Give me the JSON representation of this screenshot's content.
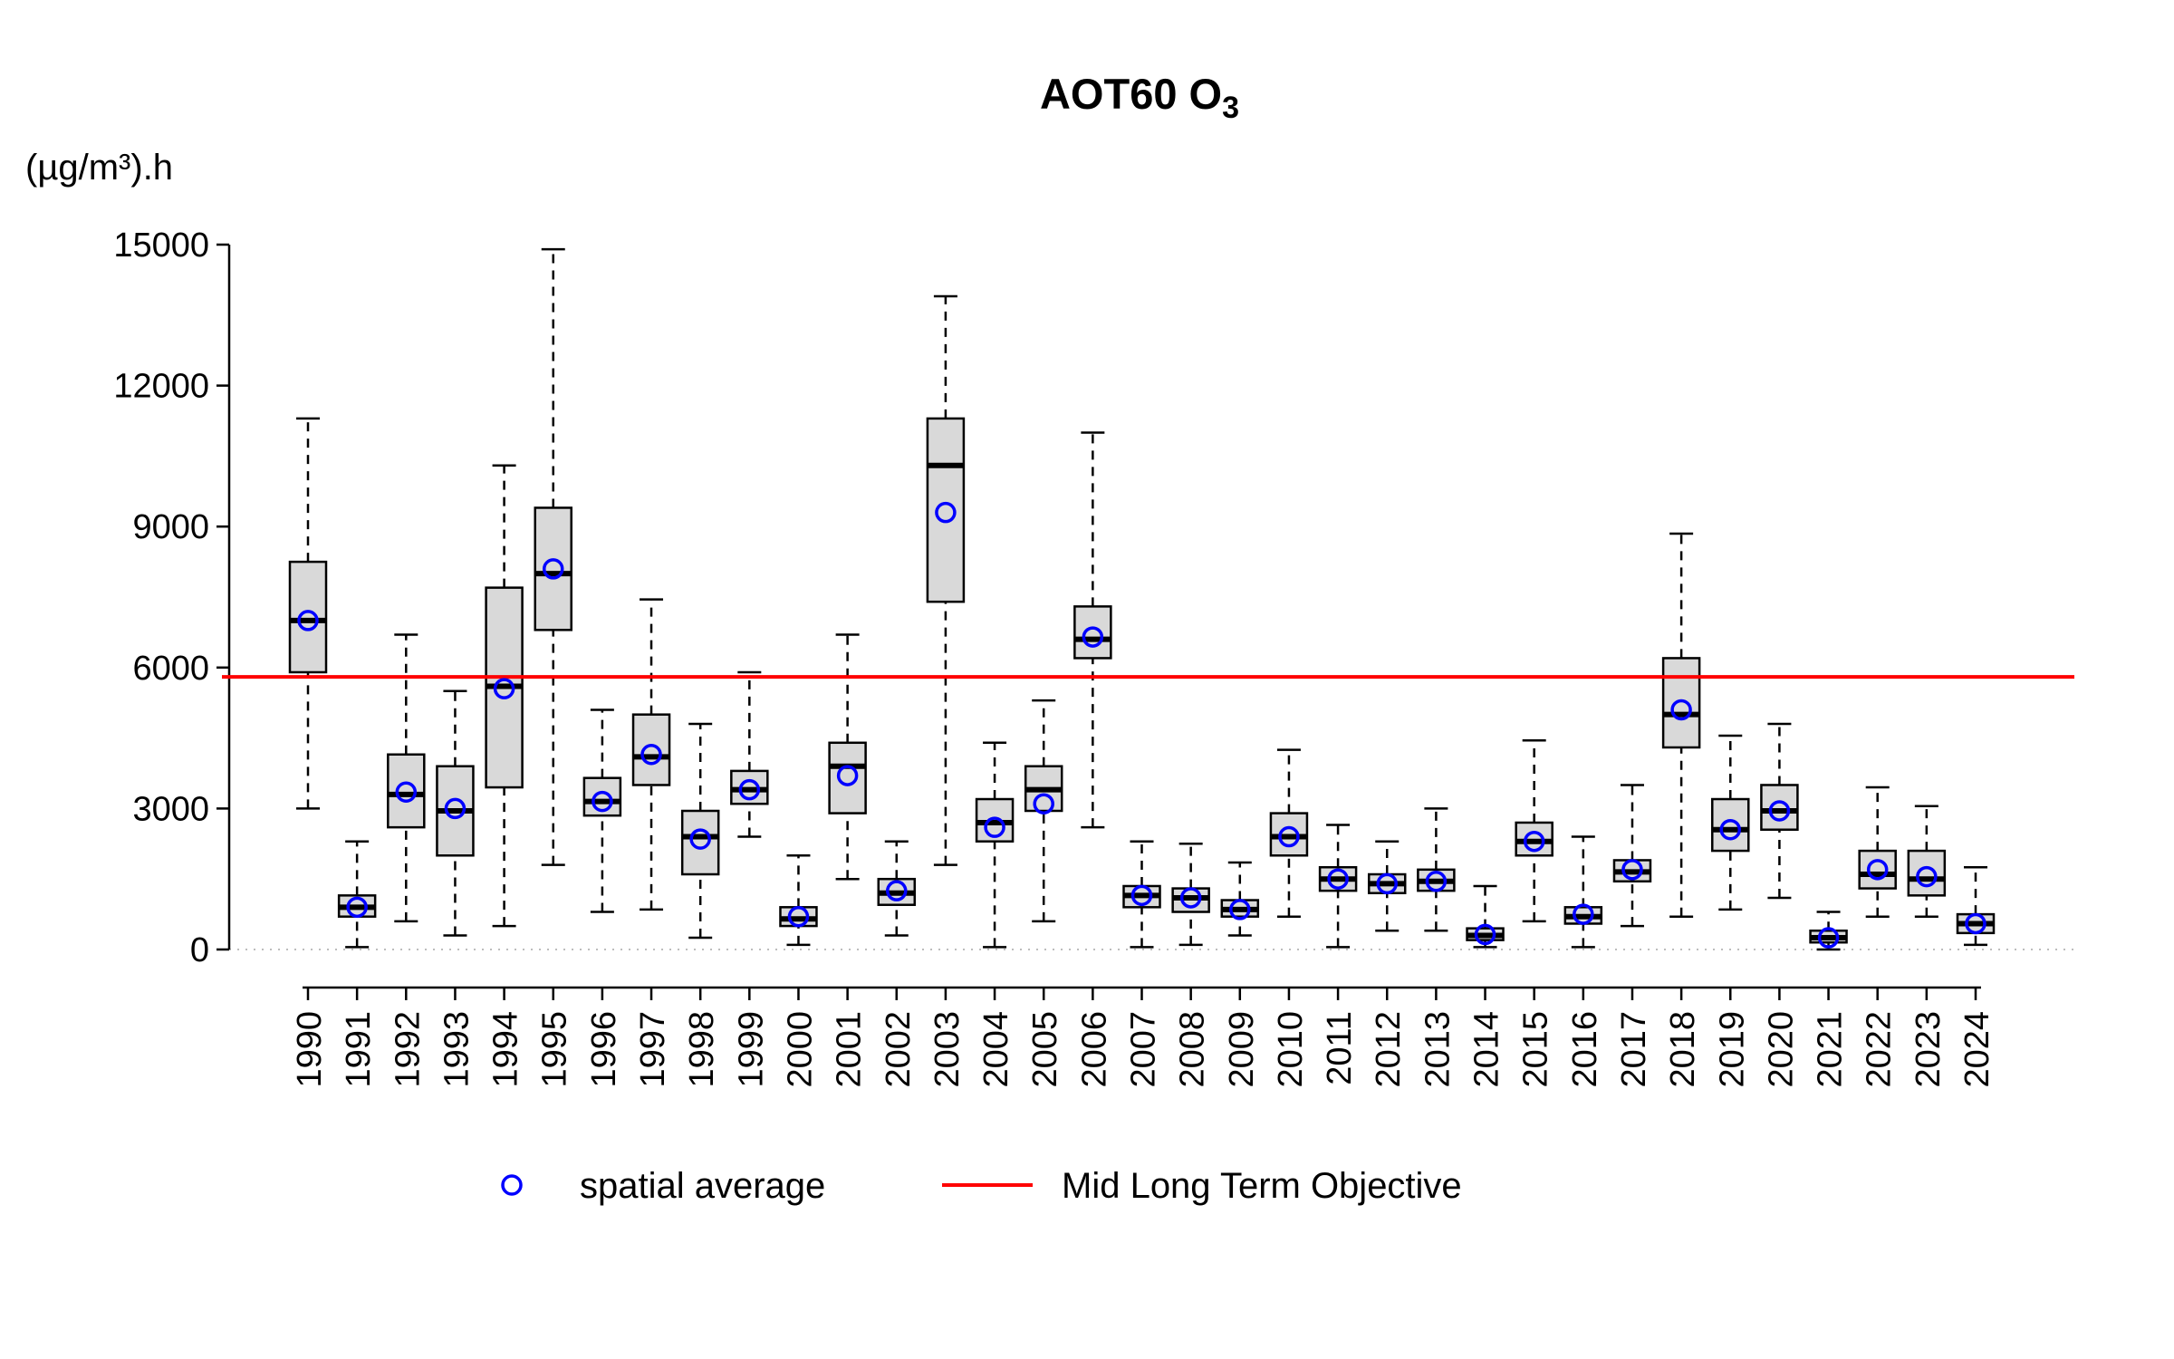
{
  "title": {
    "main": "AOT60 O",
    "sub": "3"
  },
  "y_axis_unit": "(µg/m³).h",
  "legend": {
    "mean_label": "spatial average",
    "line_label": "Mid Long Term Objective"
  },
  "colors": {
    "box_fill": "#d9d9d9",
    "box_stroke": "#000000",
    "median": "#000000",
    "whisker": "#000000",
    "mean_marker": "#0000ff",
    "objective_line": "#ff0000",
    "zero_line": "#bdbdbd",
    "axis": "#000000"
  },
  "chart_data": {
    "type": "boxplot",
    "title": "AOT60 O3",
    "xlabel": "",
    "ylabel": "(µg/m³).h",
    "ylim": [
      0,
      15000
    ],
    "yticks": [
      0,
      3000,
      6000,
      9000,
      12000,
      15000
    ],
    "grid": false,
    "legend_position": "bottom",
    "objective_value": 5800,
    "zero_reference_line": 0,
    "categories": [
      "1990",
      "1991",
      "1992",
      "1993",
      "1994",
      "1995",
      "1996",
      "1997",
      "1998",
      "1999",
      "2000",
      "2001",
      "2002",
      "2003",
      "2004",
      "2005",
      "2006",
      "2007",
      "2008",
      "2009",
      "2010",
      "2011",
      "2012",
      "2013",
      "2014",
      "2015",
      "2016",
      "2017",
      "2018",
      "2019",
      "2020",
      "2021",
      "2022",
      "2023",
      "2024"
    ],
    "boxes": [
      {
        "year": "1990",
        "low": 3000,
        "q1": 5900,
        "median": 7000,
        "q3": 8250,
        "high": 11300,
        "mean": 7000
      },
      {
        "year": "1991",
        "low": 50,
        "q1": 700,
        "median": 900,
        "q3": 1150,
        "high": 2300,
        "mean": 900
      },
      {
        "year": "1992",
        "low": 600,
        "q1": 2600,
        "median": 3300,
        "q3": 4150,
        "high": 6700,
        "mean": 3350
      },
      {
        "year": "1993",
        "low": 300,
        "q1": 2000,
        "median": 2950,
        "q3": 3900,
        "high": 5500,
        "mean": 3000
      },
      {
        "year": "1994",
        "low": 500,
        "q1": 3450,
        "median": 5600,
        "q3": 7700,
        "high": 10300,
        "mean": 5550
      },
      {
        "year": "1995",
        "low": 1800,
        "q1": 6800,
        "median": 8000,
        "q3": 9400,
        "high": 14900,
        "mean": 8100
      },
      {
        "year": "1996",
        "low": 800,
        "q1": 2850,
        "median": 3150,
        "q3": 3650,
        "high": 5100,
        "mean": 3150
      },
      {
        "year": "1997",
        "low": 850,
        "q1": 3500,
        "median": 4100,
        "q3": 5000,
        "high": 7450,
        "mean": 4150
      },
      {
        "year": "1998",
        "low": 250,
        "q1": 1600,
        "median": 2400,
        "q3": 2950,
        "high": 4800,
        "mean": 2350
      },
      {
        "year": "1999",
        "low": 2400,
        "q1": 3100,
        "median": 3400,
        "q3": 3800,
        "high": 5900,
        "mean": 3400
      },
      {
        "year": "2000",
        "low": 100,
        "q1": 500,
        "median": 650,
        "q3": 900,
        "high": 2000,
        "mean": 700
      },
      {
        "year": "2001",
        "low": 1500,
        "q1": 2900,
        "median": 3900,
        "q3": 4400,
        "high": 6700,
        "mean": 3700
      },
      {
        "year": "2002",
        "low": 300,
        "q1": 950,
        "median": 1200,
        "q3": 1500,
        "high": 2300,
        "mean": 1250
      },
      {
        "year": "2003",
        "low": 1800,
        "q1": 7400,
        "median": 10300,
        "q3": 11300,
        "high": 13900,
        "mean": 9300
      },
      {
        "year": "2004",
        "low": 50,
        "q1": 2300,
        "median": 2700,
        "q3": 3200,
        "high": 4400,
        "mean": 2600
      },
      {
        "year": "2005",
        "low": 600,
        "q1": 2950,
        "median": 3400,
        "q3": 3900,
        "high": 5300,
        "mean": 3100
      },
      {
        "year": "2006",
        "low": 2600,
        "q1": 6200,
        "median": 6600,
        "q3": 7300,
        "high": 11000,
        "mean": 6650
      },
      {
        "year": "2007",
        "low": 50,
        "q1": 900,
        "median": 1150,
        "q3": 1350,
        "high": 2300,
        "mean": 1150
      },
      {
        "year": "2008",
        "low": 100,
        "q1": 800,
        "median": 1100,
        "q3": 1300,
        "high": 2250,
        "mean": 1100
      },
      {
        "year": "2009",
        "low": 300,
        "q1": 700,
        "median": 850,
        "q3": 1050,
        "high": 1850,
        "mean": 850
      },
      {
        "year": "2010",
        "low": 700,
        "q1": 2000,
        "median": 2400,
        "q3": 2900,
        "high": 4250,
        "mean": 2400
      },
      {
        "year": "2011",
        "low": 50,
        "q1": 1250,
        "median": 1500,
        "q3": 1750,
        "high": 2650,
        "mean": 1500
      },
      {
        "year": "2012",
        "low": 400,
        "q1": 1200,
        "median": 1400,
        "q3": 1600,
        "high": 2300,
        "mean": 1400
      },
      {
        "year": "2013",
        "low": 400,
        "q1": 1250,
        "median": 1450,
        "q3": 1700,
        "high": 3000,
        "mean": 1450
      },
      {
        "year": "2014",
        "low": 50,
        "q1": 200,
        "median": 300,
        "q3": 450,
        "high": 1350,
        "mean": 320
      },
      {
        "year": "2015",
        "low": 600,
        "q1": 2000,
        "median": 2300,
        "q3": 2700,
        "high": 4450,
        "mean": 2300
      },
      {
        "year": "2016",
        "low": 50,
        "q1": 550,
        "median": 700,
        "q3": 900,
        "high": 2400,
        "mean": 750
      },
      {
        "year": "2017",
        "low": 500,
        "q1": 1450,
        "median": 1650,
        "q3": 1900,
        "high": 3500,
        "mean": 1700
      },
      {
        "year": "2018",
        "low": 700,
        "q1": 4300,
        "median": 5000,
        "q3": 6200,
        "high": 8850,
        "mean": 5100
      },
      {
        "year": "2019",
        "low": 850,
        "q1": 2100,
        "median": 2550,
        "q3": 3200,
        "high": 4550,
        "mean": 2550
      },
      {
        "year": "2020",
        "low": 1100,
        "q1": 2550,
        "median": 2950,
        "q3": 3500,
        "high": 4800,
        "mean": 2950
      },
      {
        "year": "2021",
        "low": 0,
        "q1": 150,
        "median": 250,
        "q3": 400,
        "high": 800,
        "mean": 250
      },
      {
        "year": "2022",
        "low": 700,
        "q1": 1300,
        "median": 1600,
        "q3": 2100,
        "high": 3450,
        "mean": 1700
      },
      {
        "year": "2023",
        "low": 700,
        "q1": 1150,
        "median": 1500,
        "q3": 2100,
        "high": 3050,
        "mean": 1550
      },
      {
        "year": "2024",
        "low": 100,
        "q1": 350,
        "median": 550,
        "q3": 750,
        "high": 1750,
        "mean": 550
      }
    ]
  }
}
